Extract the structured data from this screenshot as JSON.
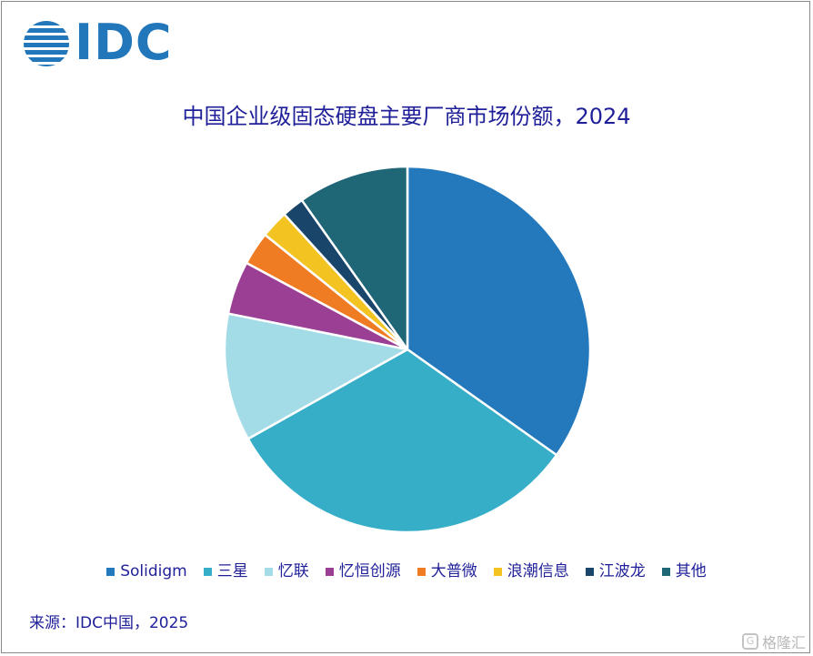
{
  "header": {
    "logo_text": "IDC",
    "title": "中国企业级固态硬盘主要厂商市场份额，2024"
  },
  "colors": {
    "title": "#1f1f99",
    "logo": "#2277bb",
    "text": "#1f1f99",
    "slice_border": "#ffffff"
  },
  "chart_data": {
    "type": "pie",
    "title": "中国企业级固态硬盘主要厂商市场份额，2024",
    "units": "percent (estimated from slice angles)",
    "start_angle_deg": 0,
    "direction": "clockwise",
    "slices": [
      {
        "label": "Solidigm",
        "value": 35.5,
        "color": "#2479bd"
      },
      {
        "label": "三星",
        "value": 32.7,
        "color": "#37aec8"
      },
      {
        "label": "忆联",
        "value": 11.5,
        "color": "#a3dbe6"
      },
      {
        "label": "忆恒创源",
        "value": 4.8,
        "color": "#9b3f95"
      },
      {
        "label": "大普微",
        "value": 3.0,
        "color": "#ef7b22"
      },
      {
        "label": "浪潮信息",
        "value": 2.5,
        "color": "#f3c322"
      },
      {
        "label": "江波龙",
        "value": 2.0,
        "color": "#19456b"
      },
      {
        "label": "其他",
        "value": 10.0,
        "color": "#1f6677"
      }
    ],
    "legend_position": "bottom"
  },
  "legend": {
    "items": [
      "Solidigm",
      "三星",
      "忆联",
      "忆恒创源",
      "大普微",
      "浪潮信息",
      "江波龙",
      "其他"
    ]
  },
  "footer": {
    "source": "来源：IDC中国，2025"
  },
  "watermark": {
    "icon": "G",
    "text": "格隆汇"
  }
}
